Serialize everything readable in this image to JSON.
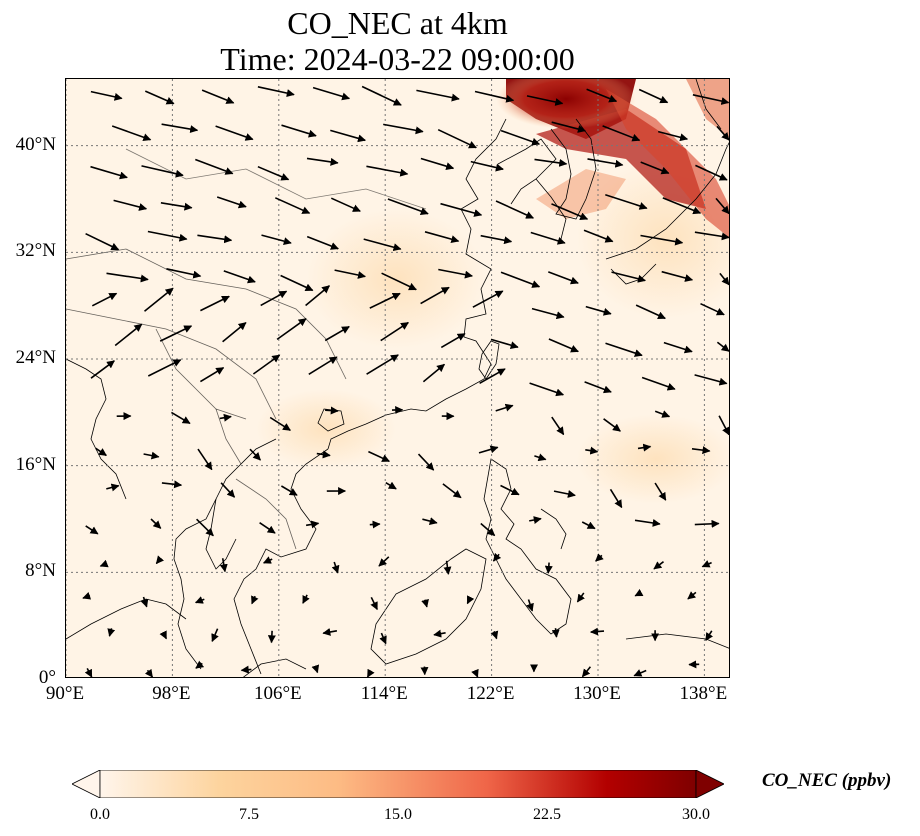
{
  "title": {
    "line1": "CO_NEC at 4km",
    "line2": "Time: 2024-03-22 09:00:00"
  },
  "map": {
    "lon_range": [
      90,
      140
    ],
    "lat_range": [
      0,
      45
    ],
    "lon_ticks": [
      {
        "value": 90,
        "label": "90°E"
      },
      {
        "value": 98,
        "label": "98°E"
      },
      {
        "value": 106,
        "label": "106°E"
      },
      {
        "value": 114,
        "label": "114°E"
      },
      {
        "value": 122,
        "label": "122°E"
      },
      {
        "value": 130,
        "label": "130°E"
      },
      {
        "value": 138,
        "label": "138°E"
      }
    ],
    "lat_ticks": [
      {
        "value": 0,
        "label": "0°"
      },
      {
        "value": 8,
        "label": "8°N"
      },
      {
        "value": 16,
        "label": "16°N"
      },
      {
        "value": 24,
        "label": "24°N"
      },
      {
        "value": 32,
        "label": "32°N"
      },
      {
        "value": 40,
        "label": "40°N"
      }
    ],
    "gridlines": true,
    "field_variable": "CO_NEC",
    "background_color": "#fff4e6",
    "plume_color": "#8b0000",
    "coastline_color": "#000000"
  },
  "colorbar": {
    "label": "CO_NEC (ppbv)",
    "ticks": [
      "0.0",
      "7.5",
      "15.0",
      "22.5",
      "30.0"
    ],
    "range": [
      0,
      30
    ],
    "colormap": [
      "#fff5eb",
      "#fdd49e",
      "#fdbb84",
      "#ef6548",
      "#b30000",
      "#7f0000"
    ],
    "extend": "both"
  }
}
